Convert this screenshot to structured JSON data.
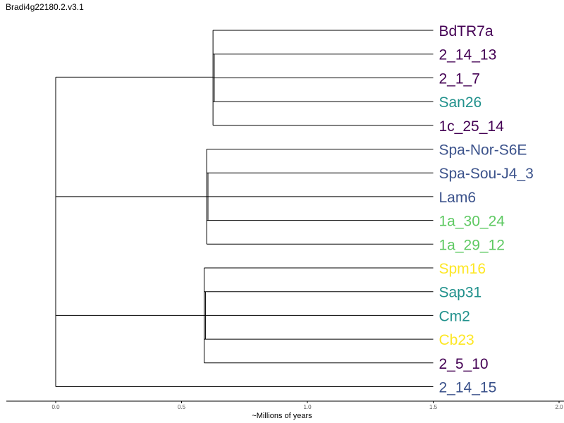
{
  "title": "Bradi4g22180.2.v3.1",
  "chart_data": {
    "type": "dendrogram",
    "xlabel": "~Millions of years",
    "xlim": [
      0.0,
      2.0
    ],
    "xticks": [
      "0.0",
      "0.5",
      "1.0",
      "1.5",
      "2.0"
    ],
    "leaves": [
      {
        "name": "BdTR7a",
        "color": "#440154"
      },
      {
        "name": "2_14_13",
        "color": "#440154"
      },
      {
        "name": "2_1_7",
        "color": "#440154"
      },
      {
        "name": "San26",
        "color": "#21918c"
      },
      {
        "name": "1c_25_14",
        "color": "#440154"
      },
      {
        "name": "Spa-Nor-S6E",
        "color": "#3b528b"
      },
      {
        "name": "Spa-Sou-J4_3",
        "color": "#3b528b"
      },
      {
        "name": "Lam6",
        "color": "#3b528b"
      },
      {
        "name": "1a_30_24",
        "color": "#5ec962"
      },
      {
        "name": "1a_29_12",
        "color": "#5ec962"
      },
      {
        "name": "Spm16",
        "color": "#fde725"
      },
      {
        "name": "Sap31",
        "color": "#21918c"
      },
      {
        "name": "Cm2",
        "color": "#21918c"
      },
      {
        "name": "Cb23",
        "color": "#fde725"
      },
      {
        "name": "2_5_10",
        "color": "#440154"
      },
      {
        "name": "2_14_15",
        "color": "#3b528b"
      }
    ],
    "clades": [
      {
        "age": 1.5,
        "children_leaves": [
          0,
          1,
          2,
          3,
          4,
          5,
          6,
          7,
          8,
          9,
          10,
          11,
          12,
          13,
          14,
          15
        ],
        "node_x": 0.0,
        "groups": [
          {
            "node_x": 0.625,
            "leaves": [
              0,
              1,
              2,
              3,
              4
            ],
            "subnodes": [
              {
                "x": 0.625,
                "leaves": [
                  0,
                  1,
                  2,
                  3,
                  4
                ]
              }
            ]
          },
          {
            "node_x": 0.6,
            "leaves": [
              5,
              6,
              7,
              8,
              9
            ]
          },
          {
            "node_x": 0.59,
            "leaves": [
              10,
              11,
              12,
              13,
              14
            ]
          },
          {
            "node_x": 1.5,
            "leaves": [
              15
            ]
          }
        ]
      }
    ]
  }
}
